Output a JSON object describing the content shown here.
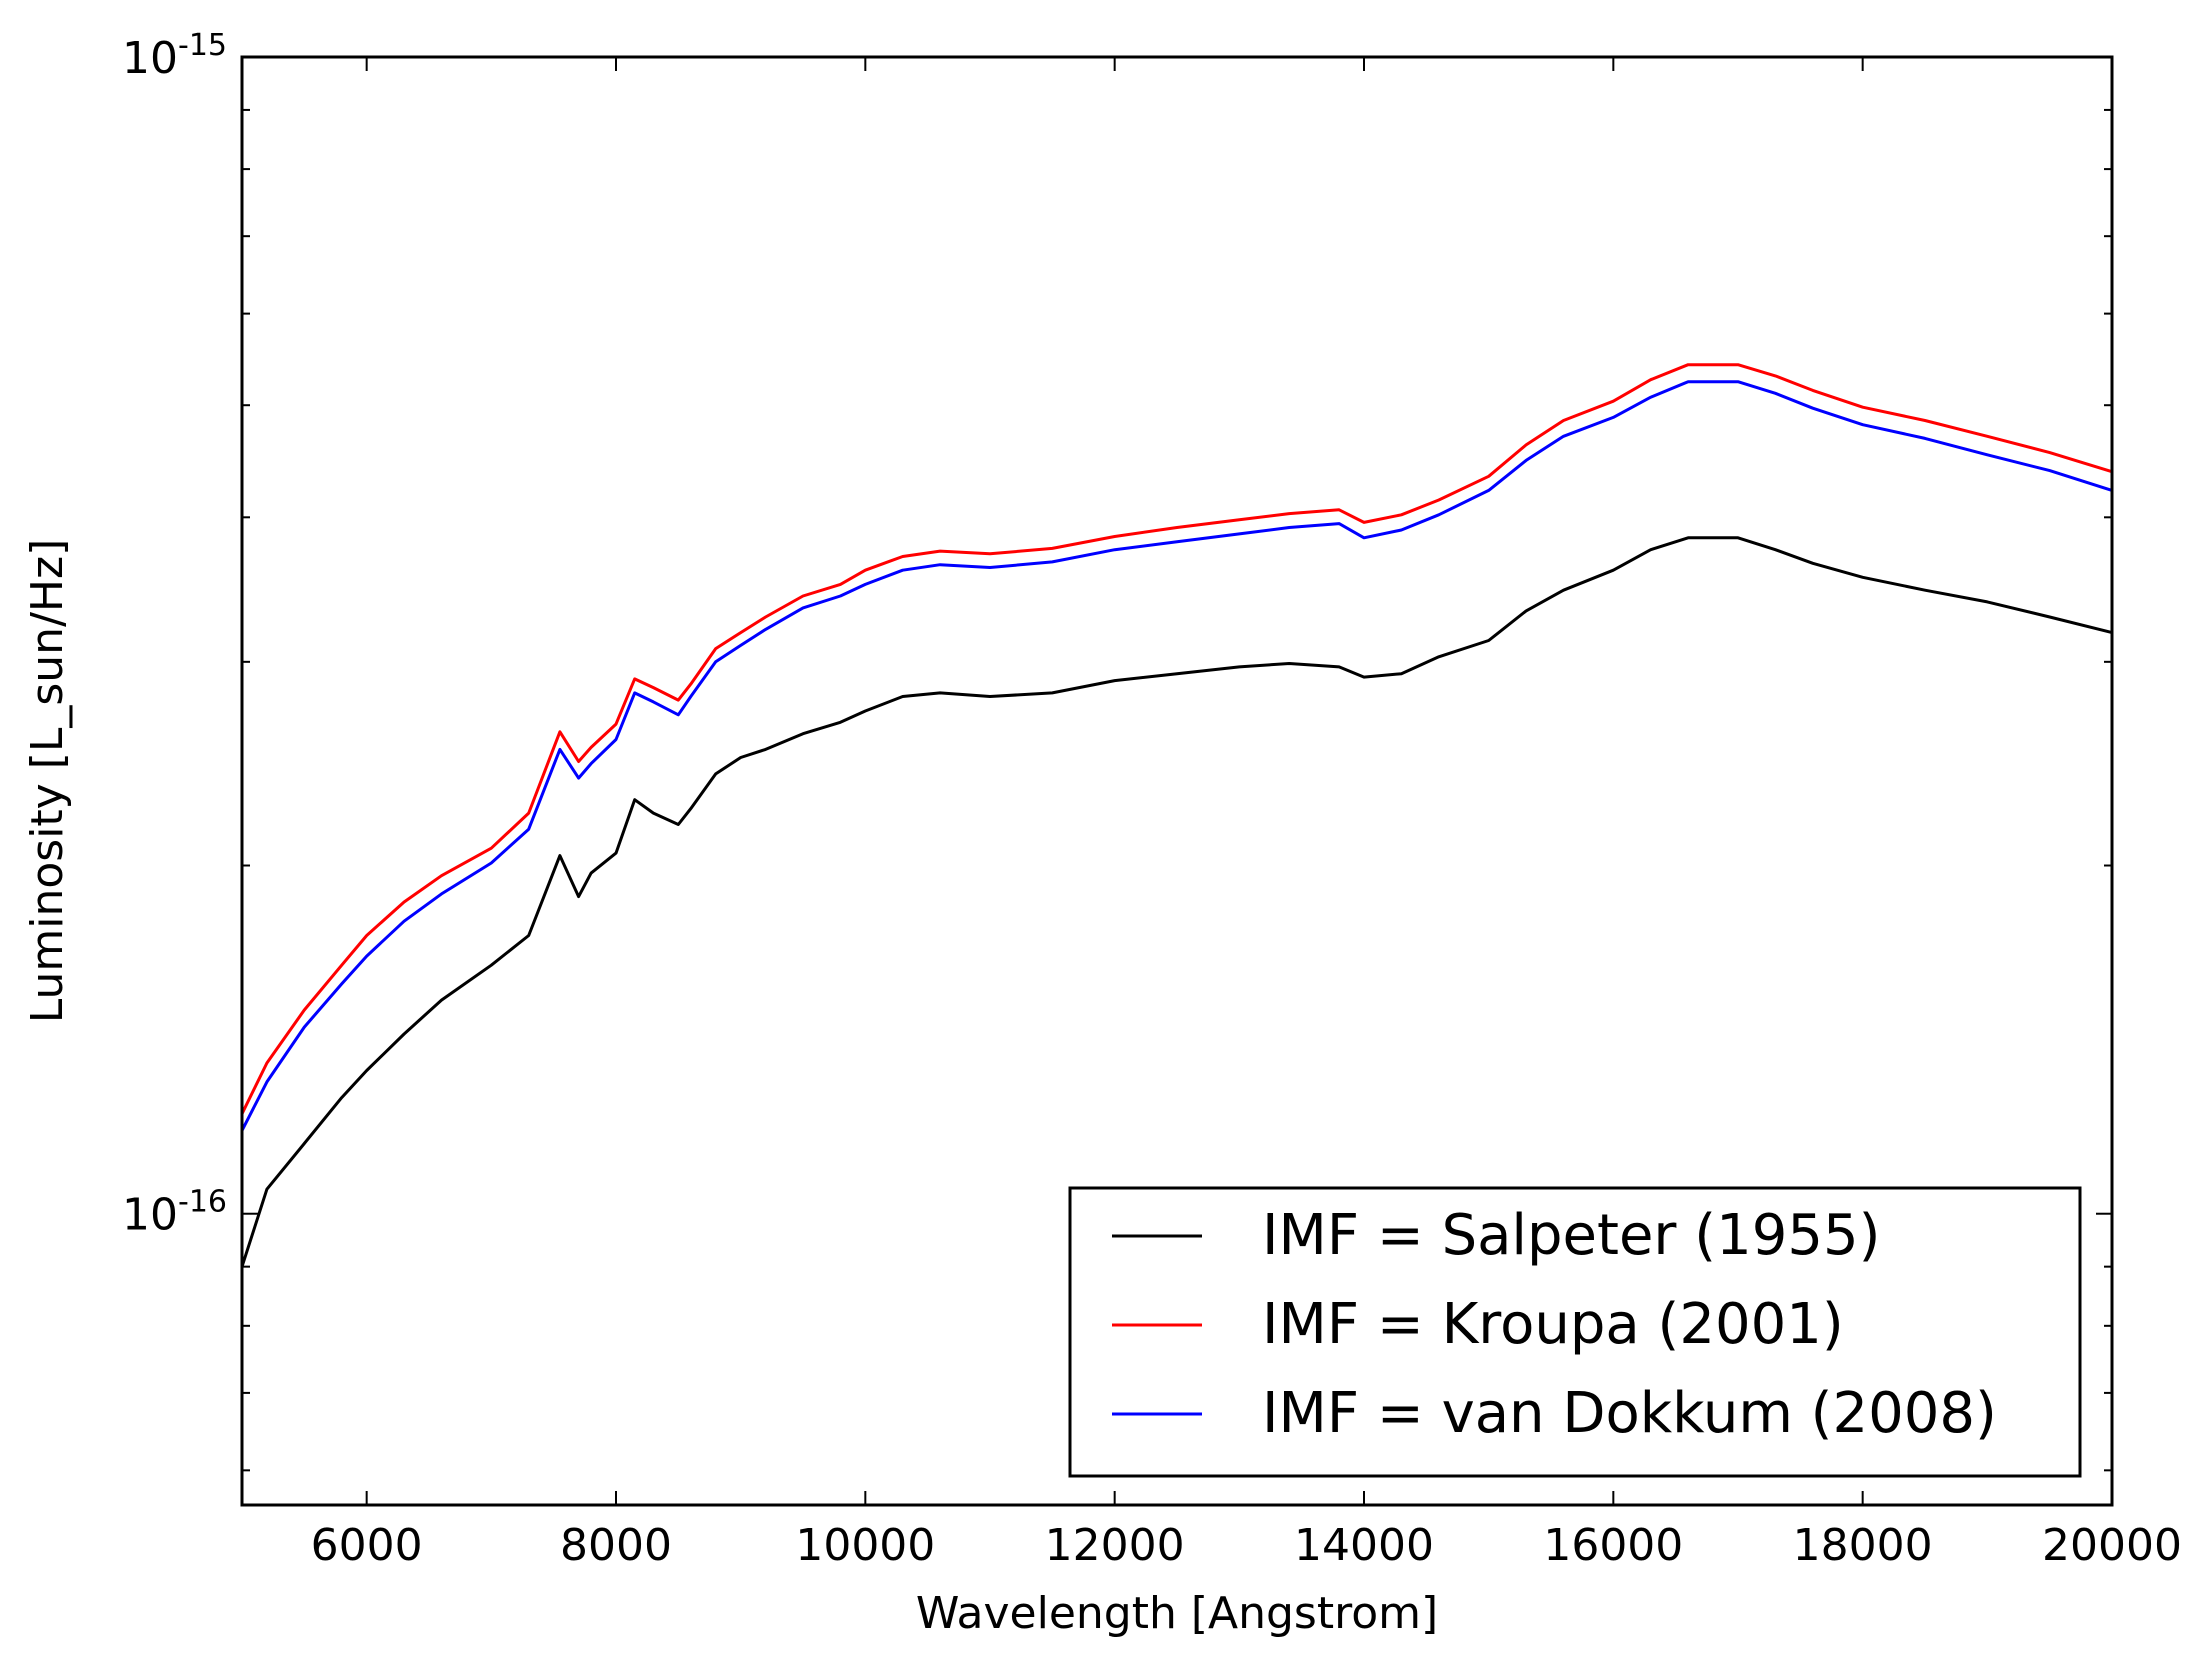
{
  "chart_data": {
    "type": "line",
    "title": "",
    "xlabel": "Wavelength [Angstrom]",
    "ylabel": "Luminosity [L_sun/Hz]",
    "xlim": [
      5000,
      20000
    ],
    "ylim": [
      5.6e-17,
      1e-15
    ],
    "yscale": "log",
    "grid": false,
    "legend_position": "lower-right",
    "x_ticks": [
      6000,
      8000,
      10000,
      12000,
      14000,
      16000,
      18000,
      20000
    ],
    "x_tick_labels": [
      "6000",
      "8000",
      "10000",
      "12000",
      "14000",
      "16000",
      "18000",
      "20000"
    ],
    "y_ticks": [
      {
        "value": 1e-16,
        "base": "10",
        "exp": "-16"
      },
      {
        "value": 1e-15,
        "base": "10",
        "exp": "-15"
      }
    ],
    "series": [
      {
        "name": "IMF = Salpeter (1955)",
        "color": "#000000",
        "points": [
          [
            5000,
            9e-17
          ],
          [
            5200,
            1.05e-16
          ],
          [
            5500,
            1.15e-16
          ],
          [
            5800,
            1.26e-16
          ],
          [
            6000,
            1.33e-16
          ],
          [
            6300,
            1.43e-16
          ],
          [
            6600,
            1.53e-16
          ],
          [
            7000,
            1.64e-16
          ],
          [
            7300,
            1.74e-16
          ],
          [
            7550,
            2.04e-16
          ],
          [
            7700,
            1.88e-16
          ],
          [
            7800,
            1.97e-16
          ],
          [
            8000,
            2.05e-16
          ],
          [
            8150,
            2.28e-16
          ],
          [
            8300,
            2.22e-16
          ],
          [
            8500,
            2.17e-16
          ],
          [
            8600,
            2.24e-16
          ],
          [
            8800,
            2.4e-16
          ],
          [
            9000,
            2.48e-16
          ],
          [
            9200,
            2.52e-16
          ],
          [
            9500,
            2.6e-16
          ],
          [
            9800,
            2.66e-16
          ],
          [
            10000,
            2.72e-16
          ],
          [
            10300,
            2.8e-16
          ],
          [
            10600,
            2.82e-16
          ],
          [
            11000,
            2.8e-16
          ],
          [
            11500,
            2.82e-16
          ],
          [
            12000,
            2.89e-16
          ],
          [
            12500,
            2.93e-16
          ],
          [
            13000,
            2.97e-16
          ],
          [
            13400,
            2.99e-16
          ],
          [
            13800,
            2.97e-16
          ],
          [
            14000,
            2.91e-16
          ],
          [
            14300,
            2.93e-16
          ],
          [
            14600,
            3.03e-16
          ],
          [
            15000,
            3.13e-16
          ],
          [
            15300,
            3.32e-16
          ],
          [
            15600,
            3.46e-16
          ],
          [
            16000,
            3.6e-16
          ],
          [
            16300,
            3.75e-16
          ],
          [
            16600,
            3.84e-16
          ],
          [
            17000,
            3.84e-16
          ],
          [
            17300,
            3.75e-16
          ],
          [
            17600,
            3.65e-16
          ],
          [
            18000,
            3.55e-16
          ],
          [
            18500,
            3.46e-16
          ],
          [
            19000,
            3.38e-16
          ],
          [
            19500,
            3.28e-16
          ],
          [
            20000,
            3.18e-16
          ]
        ]
      },
      {
        "name": "IMF = Kroupa (2001)",
        "color": "#ff0000",
        "points": [
          [
            5000,
            1.22e-16
          ],
          [
            5200,
            1.35e-16
          ],
          [
            5500,
            1.5e-16
          ],
          [
            5800,
            1.64e-16
          ],
          [
            6000,
            1.74e-16
          ],
          [
            6300,
            1.86e-16
          ],
          [
            6600,
            1.96e-16
          ],
          [
            7000,
            2.07e-16
          ],
          [
            7300,
            2.22e-16
          ],
          [
            7550,
            2.61e-16
          ],
          [
            7700,
            2.46e-16
          ],
          [
            7800,
            2.53e-16
          ],
          [
            8000,
            2.65e-16
          ],
          [
            8150,
            2.9e-16
          ],
          [
            8300,
            2.85e-16
          ],
          [
            8500,
            2.78e-16
          ],
          [
            8600,
            2.87e-16
          ],
          [
            8800,
            3.08e-16
          ],
          [
            9000,
            3.18e-16
          ],
          [
            9200,
            3.28e-16
          ],
          [
            9500,
            3.42e-16
          ],
          [
            9800,
            3.5e-16
          ],
          [
            10000,
            3.6e-16
          ],
          [
            10300,
            3.7e-16
          ],
          [
            10600,
            3.74e-16
          ],
          [
            11000,
            3.72e-16
          ],
          [
            11500,
            3.76e-16
          ],
          [
            12000,
            3.85e-16
          ],
          [
            12500,
            3.92e-16
          ],
          [
            13000,
            3.98e-16
          ],
          [
            13400,
            4.03e-16
          ],
          [
            13800,
            4.06e-16
          ],
          [
            14000,
            3.96e-16
          ],
          [
            14300,
            4.02e-16
          ],
          [
            14600,
            4.14e-16
          ],
          [
            15000,
            4.34e-16
          ],
          [
            15300,
            4.62e-16
          ],
          [
            15600,
            4.85e-16
          ],
          [
            16000,
            5.04e-16
          ],
          [
            16300,
            5.26e-16
          ],
          [
            16600,
            5.42e-16
          ],
          [
            17000,
            5.42e-16
          ],
          [
            17300,
            5.3e-16
          ],
          [
            17600,
            5.15e-16
          ],
          [
            18000,
            4.98e-16
          ],
          [
            18500,
            4.85e-16
          ],
          [
            19000,
            4.7e-16
          ],
          [
            19500,
            4.55e-16
          ],
          [
            20000,
            4.38e-16
          ]
        ]
      },
      {
        "name": "IMF = van Dokkum (2008)",
        "color": "#0000ff",
        "points": [
          [
            5000,
            1.18e-16
          ],
          [
            5200,
            1.3e-16
          ],
          [
            5500,
            1.45e-16
          ],
          [
            5800,
            1.58e-16
          ],
          [
            6000,
            1.67e-16
          ],
          [
            6300,
            1.79e-16
          ],
          [
            6600,
            1.89e-16
          ],
          [
            7000,
            2.01e-16
          ],
          [
            7300,
            2.15e-16
          ],
          [
            7550,
            2.52e-16
          ],
          [
            7700,
            2.38e-16
          ],
          [
            7800,
            2.45e-16
          ],
          [
            8000,
            2.57e-16
          ],
          [
            8150,
            2.82e-16
          ],
          [
            8300,
            2.77e-16
          ],
          [
            8500,
            2.7e-16
          ],
          [
            8600,
            2.8e-16
          ],
          [
            8800,
            3e-16
          ],
          [
            9000,
            3.1e-16
          ],
          [
            9200,
            3.2e-16
          ],
          [
            9500,
            3.34e-16
          ],
          [
            9800,
            3.42e-16
          ],
          [
            10000,
            3.5e-16
          ],
          [
            10300,
            3.6e-16
          ],
          [
            10600,
            3.64e-16
          ],
          [
            11000,
            3.62e-16
          ],
          [
            11500,
            3.66e-16
          ],
          [
            12000,
            3.75e-16
          ],
          [
            12500,
            3.81e-16
          ],
          [
            13000,
            3.87e-16
          ],
          [
            13400,
            3.92e-16
          ],
          [
            13800,
            3.95e-16
          ],
          [
            14000,
            3.84e-16
          ],
          [
            14300,
            3.9e-16
          ],
          [
            14600,
            4.02e-16
          ],
          [
            15000,
            4.22e-16
          ],
          [
            15300,
            4.48e-16
          ],
          [
            15600,
            4.7e-16
          ],
          [
            16000,
            4.88e-16
          ],
          [
            16300,
            5.08e-16
          ],
          [
            16600,
            5.24e-16
          ],
          [
            17000,
            5.24e-16
          ],
          [
            17300,
            5.12e-16
          ],
          [
            17600,
            4.97e-16
          ],
          [
            18000,
            4.81e-16
          ],
          [
            18500,
            4.68e-16
          ],
          [
            19000,
            4.53e-16
          ],
          [
            19500,
            4.39e-16
          ],
          [
            20000,
            4.22e-16
          ]
        ]
      }
    ]
  }
}
